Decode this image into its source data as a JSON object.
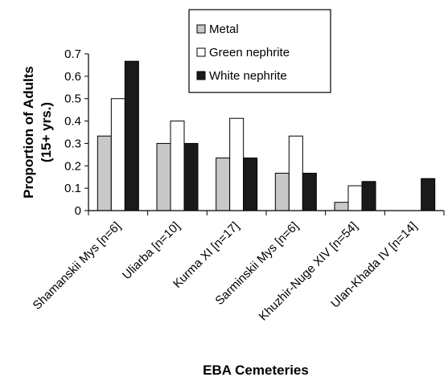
{
  "chart_data": {
    "type": "bar",
    "categories": [
      "Shamanskii Mys [n=6]",
      "Uliarba [n=10]",
      "Kurma XI [n=17]",
      "Sarminskii Mys [n=6]",
      "Khuzhir-Nuge XIV [n=54]",
      "Ulan-Khada IV [n=14]"
    ],
    "series": [
      {
        "name": "Metal",
        "values": [
          0.333,
          0.3,
          0.235,
          0.167,
          0.037,
          0
        ],
        "color": "#c8c8c8"
      },
      {
        "name": "Green nephrite",
        "values": [
          0.5,
          0.4,
          0.412,
          0.333,
          0.111,
          0
        ],
        "color": "#ffffff"
      },
      {
        "name": "White nephrite",
        "values": [
          0.667,
          0.3,
          0.235,
          0.167,
          0.13,
          0.143
        ],
        "color": "#1a1a1a"
      }
    ],
    "ylabel_lines": [
      "Proportion of Adults",
      "(15+ yrs.)"
    ],
    "xlabel": "EBA Cemeteries",
    "ylim": [
      0,
      0.7
    ],
    "yticks": [
      "0",
      "0.1",
      "0.2",
      "0.3",
      "0.4",
      "0.5",
      "0.6",
      "0.7"
    ],
    "grid": false,
    "legend_position": "top-center"
  }
}
